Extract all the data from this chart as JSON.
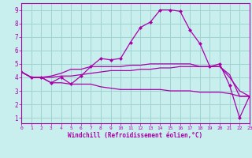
{
  "xlabel": "Windchill (Refroidissement éolien,°C)",
  "x_ticks": [
    0,
    1,
    2,
    3,
    4,
    5,
    6,
    7,
    8,
    9,
    10,
    11,
    12,
    13,
    14,
    15,
    16,
    17,
    18,
    19,
    20,
    21,
    22,
    23
  ],
  "y_ticks": [
    1,
    2,
    3,
    4,
    5,
    6,
    7,
    8,
    9
  ],
  "xlim": [
    0,
    23
  ],
  "ylim": [
    0.6,
    9.5
  ],
  "bg_color": "#c8eeed",
  "grid_color": "#a0d4d0",
  "line_color": "#aa00aa",
  "line1_x": [
    0,
    1,
    2,
    3,
    4,
    5,
    6,
    7,
    8,
    9,
    10,
    11,
    12,
    13,
    14,
    15,
    16,
    17,
    18,
    19,
    20,
    21,
    22,
    23
  ],
  "line1_y": [
    4.4,
    4.0,
    4.0,
    3.6,
    4.0,
    3.5,
    4.1,
    4.8,
    5.4,
    5.3,
    5.4,
    6.6,
    7.7,
    8.1,
    9.0,
    9.0,
    8.9,
    7.5,
    6.5,
    4.8,
    5.0,
    3.4,
    1.0,
    2.6
  ],
  "line2_x": [
    0,
    1,
    2,
    3,
    4,
    5,
    6,
    7,
    8,
    9,
    10,
    11,
    12,
    13,
    14,
    15,
    16,
    17,
    18,
    19,
    20,
    21,
    22,
    23
  ],
  "line2_y": [
    4.4,
    4.0,
    4.0,
    4.1,
    4.3,
    4.6,
    4.6,
    4.8,
    4.8,
    4.8,
    4.8,
    4.9,
    4.9,
    5.0,
    5.0,
    5.0,
    5.0,
    5.0,
    4.8,
    4.8,
    4.8,
    4.2,
    2.6,
    2.6
  ],
  "line3_x": [
    0,
    1,
    2,
    3,
    4,
    5,
    6,
    7,
    8,
    9,
    10,
    11,
    12,
    13,
    14,
    15,
    16,
    17,
    18,
    19,
    20,
    21,
    22,
    23
  ],
  "line3_y": [
    4.4,
    4.0,
    4.0,
    3.6,
    3.6,
    3.5,
    3.5,
    3.5,
    3.3,
    3.2,
    3.1,
    3.1,
    3.1,
    3.1,
    3.1,
    3.0,
    3.0,
    3.0,
    2.9,
    2.9,
    2.9,
    2.8,
    2.6,
    2.6
  ],
  "line4_x": [
    0,
    1,
    2,
    3,
    4,
    5,
    6,
    7,
    8,
    9,
    10,
    11,
    12,
    13,
    14,
    15,
    16,
    17,
    18,
    19,
    20,
    21,
    22,
    23
  ],
  "line4_y": [
    4.4,
    4.0,
    4.0,
    4.0,
    4.1,
    4.1,
    4.2,
    4.3,
    4.4,
    4.5,
    4.5,
    4.5,
    4.6,
    4.6,
    4.7,
    4.7,
    4.8,
    4.8,
    4.8,
    4.8,
    4.8,
    4.0,
    3.0,
    2.6
  ]
}
